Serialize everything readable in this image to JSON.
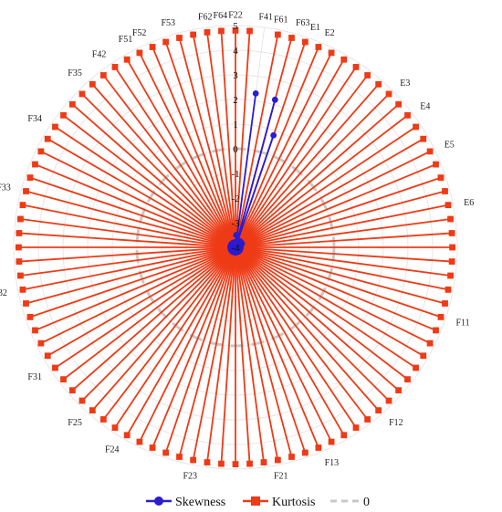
{
  "chart_data": {
    "type": "radar",
    "title": "",
    "rlim": [
      -4,
      5
    ],
    "rticks": [
      -4,
      -3,
      -2,
      -1,
      0,
      1,
      2,
      3,
      4,
      5
    ],
    "n_categories": 96,
    "labeled_categories": [
      {
        "label": "F22",
        "index": 0
      },
      {
        "label": "F41",
        "index": 2
      },
      {
        "label": "F61",
        "index": 3
      },
      {
        "label": "F63",
        "index": 4
      },
      {
        "label": "E1",
        "index": 5
      },
      {
        "label": "E2",
        "index": 6
      },
      {
        "label": "E3",
        "index": 12
      },
      {
        "label": "E4",
        "index": 14
      },
      {
        "label": "E5",
        "index": 17
      },
      {
        "label": "E6",
        "index": 21
      },
      {
        "label": "F11",
        "index": 29
      },
      {
        "label": "F12",
        "index": 37
      },
      {
        "label": "F13",
        "index": 42
      },
      {
        "label": "F21",
        "index": 45
      },
      {
        "label": "F23",
        "index": 51
      },
      {
        "label": "F24",
        "index": 56
      },
      {
        "label": "F25",
        "index": 59
      },
      {
        "label": "F31",
        "index": 63
      },
      {
        "label": "F32",
        "index": 69
      },
      {
        "label": "F33",
        "index": 76
      },
      {
        "label": "F34",
        "index": 81
      },
      {
        "label": "F35",
        "index": 85
      },
      {
        "label": "F42",
        "index": 87
      },
      {
        "label": "F51",
        "index": 89
      },
      {
        "label": "F52",
        "index": 90
      },
      {
        "label": "F53",
        "index": 92
      },
      {
        "label": "F62",
        "index": 94
      },
      {
        "label": "F64",
        "index": 95
      }
    ],
    "series": [
      {
        "name": "Skewness",
        "color": "#2b1bd1",
        "marker": "circle",
        "values": [
          -3.8,
          -3.5,
          2.3,
          -3.8,
          2.2,
          0.8,
          -3.7,
          -3.8,
          -3.7,
          -3.8,
          -3.7,
          -3.8,
          -3.7,
          -3.8,
          -3.8,
          -3.8,
          -3.7,
          -3.8,
          -3.8,
          -3.8,
          -3.8,
          -3.8,
          -3.8,
          -3.8,
          -3.8,
          -3.8,
          -3.8,
          -3.8,
          -3.8,
          -3.8,
          -3.8,
          -3.8,
          -3.8,
          -3.8,
          -3.8,
          -3.8,
          -3.8,
          -3.8,
          -3.8,
          -3.8,
          -3.8,
          -3.8,
          -3.8,
          -3.8,
          -3.8,
          -3.8,
          -3.8,
          -3.8,
          -3.8,
          -3.8,
          -3.8,
          -3.8,
          -3.8,
          -3.8,
          -3.8,
          -3.8,
          -3.8,
          -3.8,
          -3.8,
          -3.8,
          -3.8,
          -3.8,
          -3.8,
          -3.8,
          -3.8,
          -3.8,
          -3.8,
          -3.8,
          -3.8,
          -3.8,
          -3.8,
          -3.8,
          -3.8,
          -3.8,
          -3.8,
          -3.8,
          -3.8,
          -3.8,
          -3.8,
          -3.8,
          -3.8,
          -3.8,
          -3.8,
          -3.8,
          -3.8,
          -3.8,
          -3.8,
          -3.8,
          -3.8,
          -3.8,
          -3.8,
          -3.8,
          -3.8,
          -3.8,
          -3.8,
          -3.8
        ]
      },
      {
        "name": "Kurtosis",
        "color": "#ee3b16",
        "marker": "square",
        "values": [
          4.8,
          4.8,
          -3.5,
          4.8,
          4.8,
          4.8,
          4.8,
          4.8,
          4.8,
          4.8,
          4.8,
          4.8,
          4.8,
          4.8,
          4.8,
          4.8,
          4.8,
          4.8,
          4.8,
          4.8,
          4.8,
          4.8,
          4.8,
          4.8,
          4.8,
          4.8,
          4.8,
          4.8,
          4.8,
          4.8,
          4.8,
          4.8,
          4.8,
          4.8,
          4.8,
          4.8,
          4.8,
          4.8,
          4.8,
          4.8,
          4.8,
          4.8,
          4.8,
          4.8,
          4.8,
          4.8,
          4.8,
          4.8,
          4.8,
          4.8,
          4.8,
          4.8,
          4.8,
          4.8,
          4.8,
          4.8,
          4.8,
          4.8,
          4.8,
          4.8,
          4.8,
          4.8,
          4.8,
          4.8,
          4.8,
          4.8,
          4.8,
          4.8,
          4.8,
          4.8,
          4.8,
          4.8,
          4.8,
          4.8,
          4.8,
          4.8,
          4.8,
          4.8,
          4.8,
          4.8,
          4.8,
          4.8,
          4.8,
          4.8,
          4.8,
          4.8,
          4.8,
          4.8,
          4.8,
          4.8,
          4.8,
          4.8,
          4.8,
          4.8,
          4.8,
          4.8
        ]
      },
      {
        "name": "0",
        "color": "#c8c8c8",
        "style": "dashed",
        "values_constant": 0
      }
    ],
    "legend": {
      "position": "bottom",
      "entries": [
        "Skewness",
        "Kurtosis",
        "0"
      ]
    },
    "grid": true
  }
}
